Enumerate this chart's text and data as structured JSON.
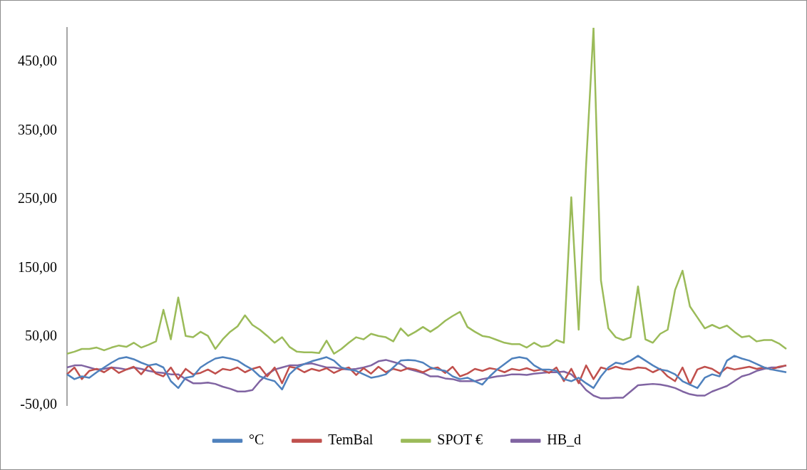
{
  "chart_data": {
    "type": "line",
    "categories": [
      null,
      null,
      null,
      null,
      null,
      null,
      null,
      null,
      null,
      null,
      null,
      null,
      null,
      null,
      null,
      null,
      null,
      null,
      null,
      null,
      null,
      null,
      null,
      null,
      null,
      null,
      null,
      null,
      null,
      null,
      null,
      null,
      null,
      null,
      null,
      null,
      null,
      null,
      null,
      null,
      null,
      null,
      null,
      null,
      null,
      null,
      null,
      null,
      null,
      null,
      null,
      null,
      null,
      null,
      null,
      null,
      null,
      null,
      null,
      null,
      null,
      null,
      null,
      null,
      null,
      null,
      null,
      null,
      null,
      null,
      null,
      null,
      null,
      null,
      null,
      null,
      null,
      null,
      null,
      null,
      null,
      null,
      null,
      null,
      null,
      null,
      null,
      null,
      null,
      null,
      null,
      null,
      null,
      null,
      null,
      null,
      null,
      null
    ],
    "series": [
      {
        "name": "°C",
        "color": "#4f81bd",
        "values": [
          -5,
          -12,
          -8,
          -10,
          -2,
          5,
          12,
          18,
          20,
          17,
          12,
          8,
          10,
          5,
          -15,
          -25,
          -10,
          -8,
          5,
          12,
          18,
          20,
          18,
          15,
          8,
          2,
          -8,
          -12,
          -15,
          -27,
          -5,
          5,
          10,
          14,
          17,
          20,
          15,
          5,
          2,
          0,
          -5,
          -10,
          -8,
          -5,
          5,
          15,
          16,
          15,
          12,
          5,
          2,
          0,
          -8,
          -12,
          -10,
          -15,
          -20,
          -8,
          2,
          10,
          18,
          20,
          18,
          8,
          2,
          2,
          0,
          -12,
          -15,
          -10,
          -18,
          -25,
          -8,
          5,
          12,
          10,
          15,
          22,
          15,
          8,
          2,
          0,
          -5,
          -15,
          -20,
          -25,
          -10,
          -5,
          -8,
          15,
          22,
          18,
          15,
          10,
          5,
          2,
          0,
          -2
        ]
      },
      {
        "name": "TemBal",
        "color": "#c0504d",
        "values": [
          -5,
          5,
          -12,
          0,
          3,
          -2,
          5,
          -3,
          2,
          6,
          -5,
          8,
          -4,
          -8,
          5,
          -12,
          3,
          -5,
          -3,
          2,
          -4,
          3,
          1,
          5,
          -2,
          3,
          6,
          -8,
          5,
          -18,
          6,
          4,
          -2,
          3,
          0,
          4,
          -3,
          2,
          5,
          -6,
          4,
          -4,
          6,
          -2,
          3,
          0,
          4,
          2,
          -2,
          3,
          5,
          -3,
          6,
          -8,
          -4,
          3,
          0,
          4,
          2,
          -2,
          3,
          1,
          4,
          0,
          2,
          -3,
          5,
          -15,
          3,
          -18,
          8,
          -12,
          5,
          2,
          6,
          3,
          2,
          5,
          4,
          -2,
          3,
          -8,
          -15,
          5,
          -20,
          2,
          6,
          3,
          -4,
          5,
          2,
          4,
          6,
          3,
          5,
          2,
          6,
          8
        ]
      },
      {
        "name": "SPOT €",
        "color": "#9bbb59",
        "values": [
          25,
          28,
          32,
          32,
          34,
          30,
          34,
          37,
          35,
          41,
          34,
          38,
          43,
          89,
          46,
          107,
          51,
          49,
          57,
          51,
          32,
          46,
          57,
          65,
          81,
          67,
          60,
          51,
          41,
          49,
          35,
          28,
          27,
          27,
          26,
          44,
          25,
          32,
          41,
          49,
          46,
          54,
          51,
          49,
          43,
          62,
          51,
          57,
          64,
          57,
          64,
          73,
          80,
          86,
          64,
          57,
          51,
          49,
          45,
          41,
          39,
          39,
          34,
          41,
          35,
          37,
          45,
          41,
          253,
          60,
          300,
          500,
          132,
          62,
          49,
          45,
          49,
          123,
          46,
          41,
          54,
          60,
          118,
          146,
          94,
          78,
          62,
          67,
          62,
          66,
          57,
          49,
          51,
          43,
          45,
          45,
          40,
          32
        ]
      },
      {
        "name": "HB_d",
        "color": "#8064a2",
        "values": [
          5,
          8,
          8,
          5,
          2,
          3,
          5,
          4,
          2,
          5,
          3,
          0,
          -2,
          -3,
          -5,
          -5,
          -12,
          -18,
          -18,
          -17,
          -19,
          -23,
          -26,
          -30,
          -30,
          -28,
          -15,
          -5,
          2,
          5,
          8,
          8,
          10,
          11,
          8,
          5,
          5,
          3,
          2,
          3,
          5,
          8,
          14,
          16,
          13,
          10,
          3,
          0,
          -3,
          -8,
          -8,
          -11,
          -12,
          -15,
          -15,
          -15,
          -12,
          -10,
          -8,
          -7,
          -5,
          -5,
          -6,
          -4,
          -3,
          -2,
          -2,
          -1,
          -5,
          -15,
          -28,
          -36,
          -40,
          -40,
          -39,
          -39,
          -30,
          -21,
          -20,
          -19,
          -20,
          -22,
          -25,
          -30,
          -34,
          -36,
          -36,
          -30,
          -26,
          -22,
          -15,
          -8,
          -5,
          0,
          3,
          5,
          5,
          8
        ]
      }
    ],
    "ylim": [
      -50,
      500
    ],
    "yticks": [
      {
        "value": -50,
        "label": "-50,00"
      },
      {
        "value": 50,
        "label": "50,00"
      },
      {
        "value": 150,
        "label": "150,00"
      },
      {
        "value": 250,
        "label": "250,00"
      },
      {
        "value": 350,
        "label": "350,00"
      },
      {
        "value": 450,
        "label": "450,00"
      }
    ],
    "grid": false,
    "legend": "bottom",
    "tick_labels": "y",
    "marker": "none",
    "line_style": "solid"
  }
}
